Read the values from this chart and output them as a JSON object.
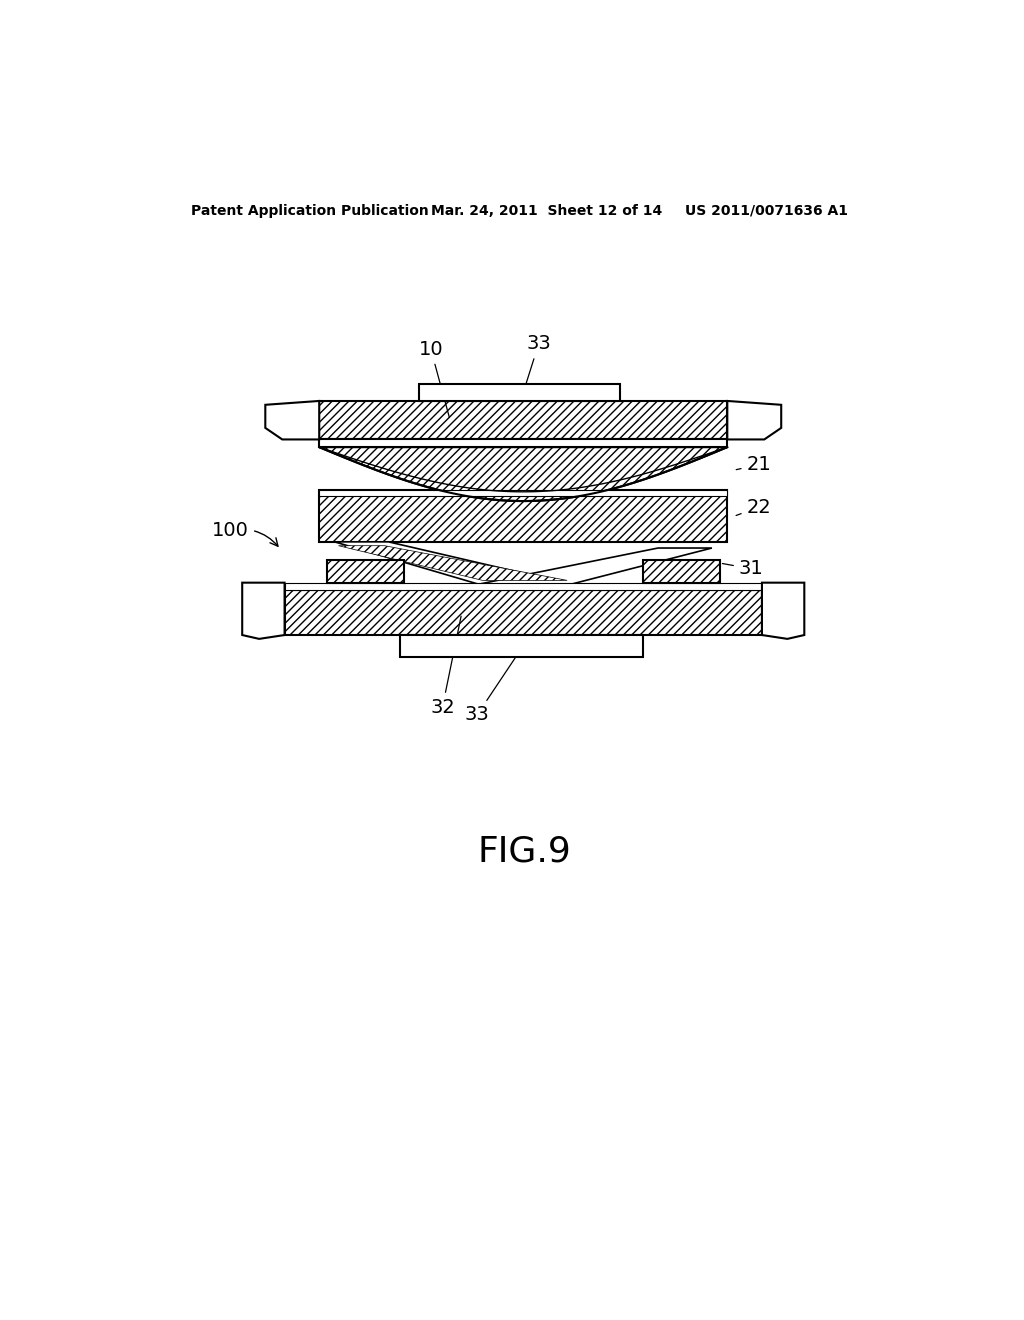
{
  "title": "FIG.9",
  "header_left": "Patent Application Publication",
  "header_mid": "Mar. 24, 2011  Sheet 12 of 14",
  "header_right": "US 2011/0071636 A1",
  "bg_color": "#ffffff",
  "line_color": "#000000"
}
